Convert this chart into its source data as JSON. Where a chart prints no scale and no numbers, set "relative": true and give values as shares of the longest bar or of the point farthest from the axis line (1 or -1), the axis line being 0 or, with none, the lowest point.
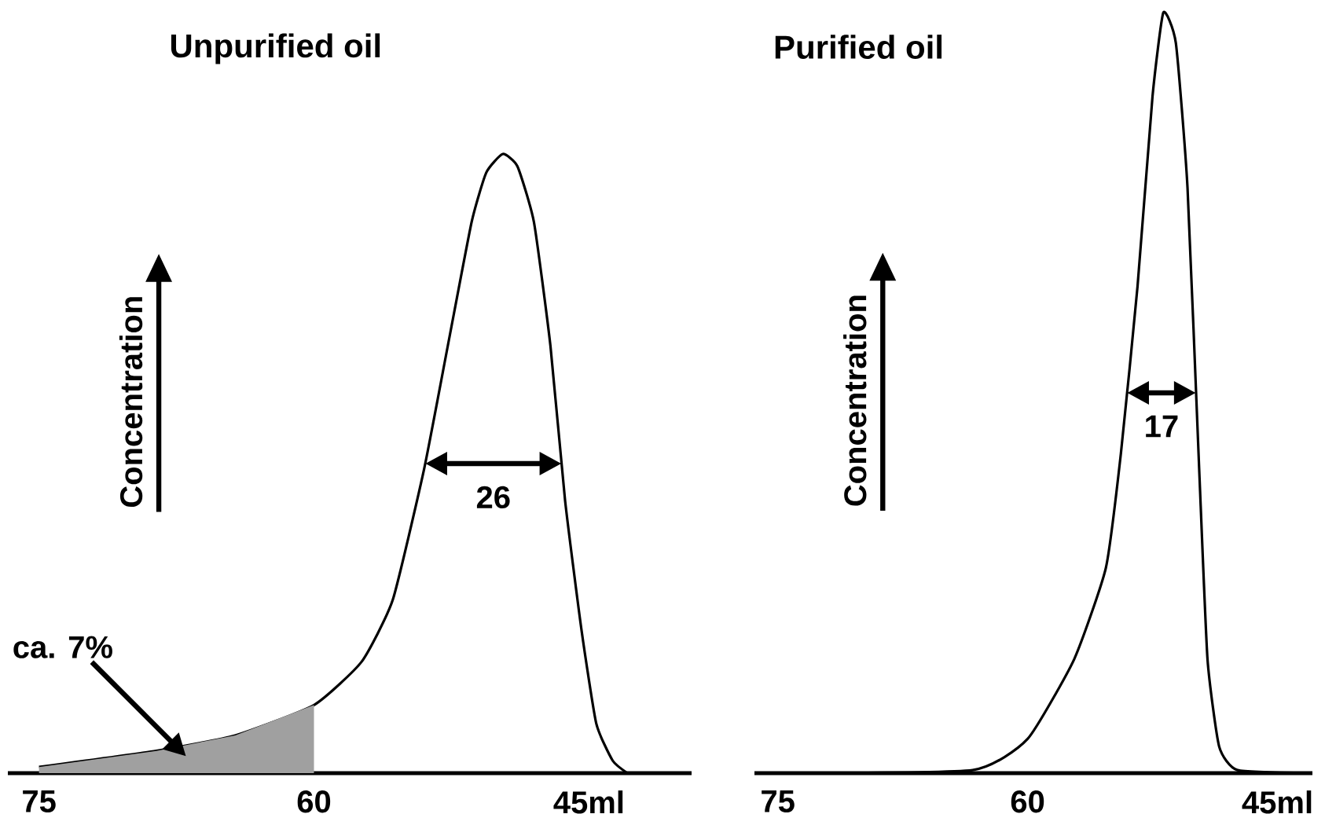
{
  "chart_data": [
    {
      "type": "line",
      "title": "Unpurified oil",
      "ylabel": "Concentration",
      "relative": true,
      "xlim": [
        76.7,
        39.4
      ],
      "xticks": [
        75,
        60,
        {
          "value": 45,
          "label": "45ml"
        }
      ],
      "tick_labels": "x",
      "marker": "none",
      "line_style": "solid",
      "series": [
        {
          "color": "#000000",
          "x": [
            75,
            68.6,
            64.3,
            60,
            57.4,
            55.7,
            54.0,
            52.7,
            51.4,
            50.6,
            49.7,
            48.9,
            48.0,
            47.1,
            46.3,
            45.4,
            44.6,
            43.7,
            42.9
          ],
          "values": [
            0.01,
            0.036,
            0.061,
            0.11,
            0.18,
            0.28,
            0.49,
            0.69,
            0.89,
            0.97,
            1.0,
            0.98,
            0.89,
            0.69,
            0.44,
            0.23,
            0.08,
            0.02,
            0
          ]
        },
        {
          "type": "area",
          "color": "#a0a0a0",
          "x": [
            75,
            68.6,
            64.3,
            60
          ],
          "values": [
            0.01,
            0.036,
            0.061,
            0.11
          ]
        }
      ],
      "annotations": [
        "26",
        "ca. 7%"
      ]
    },
    {
      "type": "line",
      "title": "Purified oil",
      "ylabel": "Concentration",
      "relative": true,
      "xlim": [
        76.4,
        42.9
      ],
      "xticks": [
        75,
        60,
        {
          "value": 45,
          "label": "45ml"
        }
      ],
      "tick_labels": "x",
      "marker": "none",
      "line_style": "solid",
      "series": [
        {
          "color": "#000000",
          "x": [
            75,
            63.3,
            60.0,
            57.2,
            55.3,
            54.4,
            53.4,
            52.5,
            51.85,
            51.1,
            50.4,
            49.7,
            49.2,
            48.5,
            47.4,
            43.1
          ],
          "values": [
            0,
            0.004,
            0.045,
            0.15,
            0.27,
            0.42,
            0.64,
            0.89,
            1.0,
            0.96,
            0.77,
            0.4,
            0.15,
            0.035,
            0.004,
            0
          ]
        }
      ],
      "annotations": [
        "17"
      ]
    }
  ]
}
